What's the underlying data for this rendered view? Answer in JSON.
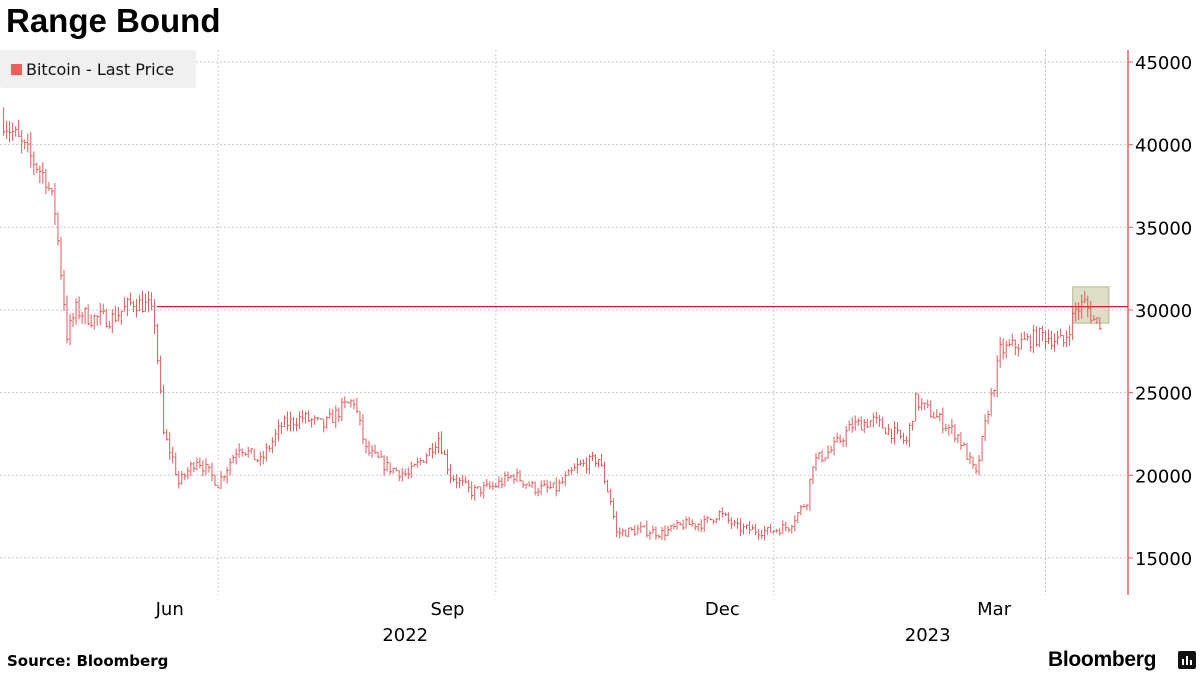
{
  "title": "Range Bound",
  "legend": {
    "label": "Bitcoin  -  Last Price",
    "color": "#f25c5c"
  },
  "source": "Source:  Bloomberg",
  "brand": "Bloomberg",
  "chart_data": {
    "type": "bar",
    "subtype": "high-low price bars",
    "series": [
      {
        "name": "Bitcoin  -  Last Price",
        "color": "#e05a5a",
        "points": [
          [
            "2022-04-21",
            41500
          ],
          [
            "2022-04-28",
            39700
          ],
          [
            "2022-05-05",
            38000
          ],
          [
            "2022-05-08",
            36000
          ],
          [
            "2022-05-11",
            30500
          ],
          [
            "2022-05-12",
            28500
          ],
          [
            "2022-05-15",
            30000
          ],
          [
            "2022-05-20",
            29500
          ],
          [
            "2022-05-27",
            29500
          ],
          [
            "2022-06-03",
            30500
          ],
          [
            "2022-06-08",
            30200
          ],
          [
            "2022-06-10",
            29300
          ],
          [
            "2022-06-13",
            22500
          ],
          [
            "2022-06-16",
            21000
          ],
          [
            "2022-06-18",
            19500
          ],
          [
            "2022-06-24",
            21000
          ],
          [
            "2022-07-01",
            19500
          ],
          [
            "2022-07-08",
            21800
          ],
          [
            "2022-07-15",
            20800
          ],
          [
            "2022-07-22",
            23000
          ],
          [
            "2022-07-29",
            23500
          ],
          [
            "2022-08-05",
            23000
          ],
          [
            "2022-08-12",
            24200
          ],
          [
            "2022-08-15",
            24500
          ],
          [
            "2022-08-19",
            21500
          ],
          [
            "2022-08-26",
            20500
          ],
          [
            "2022-09-02",
            20000
          ],
          [
            "2022-09-09",
            21500
          ],
          [
            "2022-09-12",
            22300
          ],
          [
            "2022-09-16",
            20000
          ],
          [
            "2022-09-23",
            19000
          ],
          [
            "2022-09-30",
            19300
          ],
          [
            "2022-10-07",
            20000
          ],
          [
            "2022-10-14",
            19200
          ],
          [
            "2022-10-21",
            19200
          ],
          [
            "2022-10-28",
            20500
          ],
          [
            "2022-11-04",
            21000
          ],
          [
            "2022-11-08",
            18500
          ],
          [
            "2022-11-10",
            16500
          ],
          [
            "2022-11-18",
            16700
          ],
          [
            "2022-11-25",
            16500
          ],
          [
            "2022-12-02",
            17000
          ],
          [
            "2022-12-09",
            17100
          ],
          [
            "2022-12-14",
            17700
          ],
          [
            "2022-12-20",
            16800
          ],
          [
            "2022-12-30",
            16600
          ],
          [
            "2023-01-06",
            16900
          ],
          [
            "2023-01-12",
            18500
          ],
          [
            "2023-01-14",
            20800
          ],
          [
            "2023-01-20",
            21500
          ],
          [
            "2023-01-27",
            23000
          ],
          [
            "2023-02-03",
            23300
          ],
          [
            "2023-02-10",
            22500
          ],
          [
            "2023-02-14",
            22000
          ],
          [
            "2023-02-17",
            24500
          ],
          [
            "2023-02-24",
            23500
          ],
          [
            "2023-03-03",
            22400
          ],
          [
            "2023-03-09",
            20000
          ],
          [
            "2023-03-13",
            24000
          ],
          [
            "2023-03-15",
            25500
          ],
          [
            "2023-03-17",
            27500
          ],
          [
            "2023-03-24",
            28000
          ],
          [
            "2023-03-31",
            28500
          ],
          [
            "2023-04-07",
            28000
          ],
          [
            "2023-04-11",
            30000
          ],
          [
            "2023-04-14",
            30400
          ],
          [
            "2023-04-17",
            29400
          ],
          [
            "2023-04-19",
            29300
          ]
        ]
      }
    ],
    "reference_line": 30200,
    "highlight_box": {
      "from": "2023-04-10",
      "to": "2023-04-22",
      "low": 29200,
      "high": 31400
    },
    "x_ticks": [
      "Jun",
      "Sep",
      "Dec",
      "Mar"
    ],
    "x_years": [
      "2022",
      "2023"
    ],
    "y_ticks": [
      15000,
      20000,
      25000,
      30000,
      35000,
      40000,
      45000
    ],
    "ylim": [
      13000,
      46000
    ],
    "xlim": [
      "2022-04-20",
      "2023-04-28"
    ],
    "y_axis_position": "right",
    "grid": true,
    "legend_position": "top-left"
  }
}
